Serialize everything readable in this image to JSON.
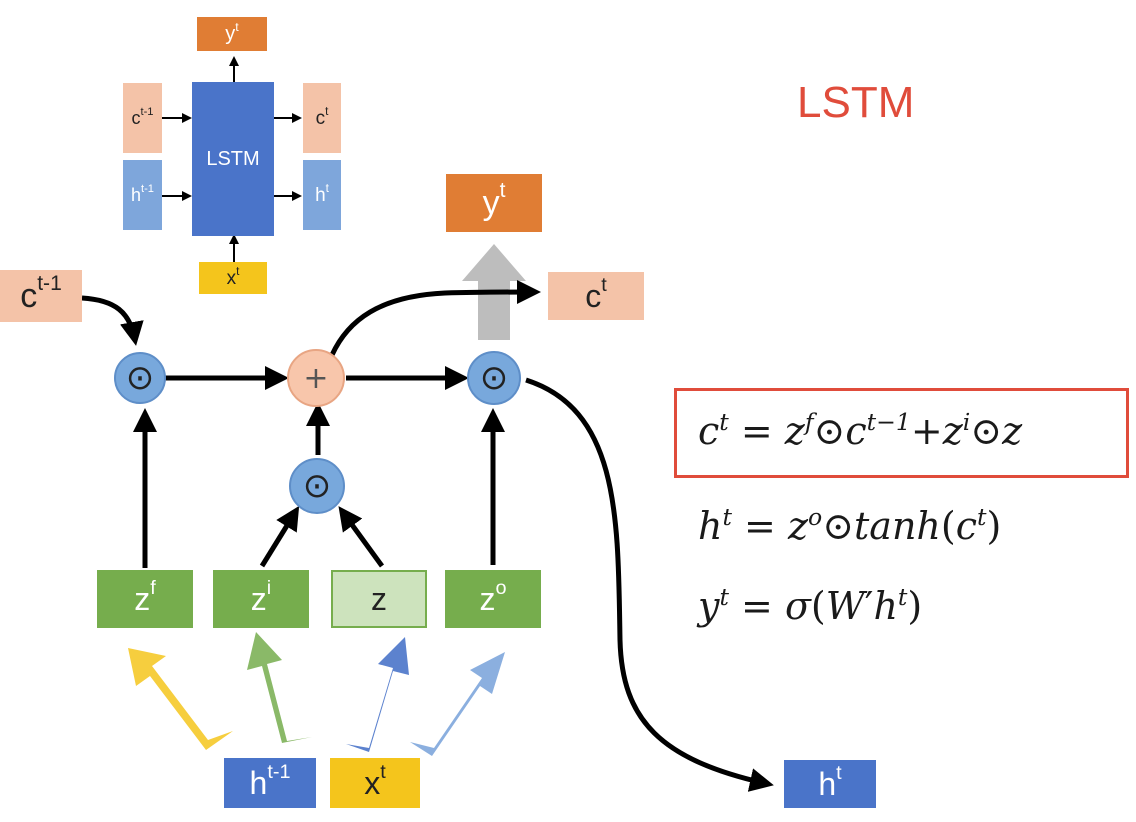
{
  "title": "LSTM",
  "mini": {
    "cell_label": "LSTM",
    "c_prev": {
      "base": "c",
      "sup": "t-1"
    },
    "h_prev": {
      "base": "h",
      "sup": "t-1"
    },
    "c_next": {
      "base": "c",
      "sup": "t"
    },
    "h_next": {
      "base": "h",
      "sup": "t"
    },
    "x": {
      "base": "x",
      "sup": "t"
    },
    "y": {
      "base": "y",
      "sup": "t"
    }
  },
  "main": {
    "c_prev": {
      "base": "c",
      "sup": "t-1"
    },
    "c_next": {
      "base": "c",
      "sup": "t"
    },
    "y_out": {
      "base": "y",
      "sup": "t"
    },
    "h_out": {
      "base": "h",
      "sup": "t"
    },
    "h_in": {
      "base": "h",
      "sup": "t-1"
    },
    "x_in": {
      "base": "x",
      "sup": "t"
    },
    "gates": {
      "zf": {
        "base": "z",
        "sup": "f"
      },
      "zi": {
        "base": "z",
        "sup": "i"
      },
      "z": {
        "base": "z",
        "sup": ""
      },
      "zo": {
        "base": "z",
        "sup": "o"
      }
    },
    "ops": {
      "mult": "⊙",
      "add": "+"
    }
  },
  "equations": [
    "c^t = z^f ⊙ c^{t−1} + z^i ⊙ z",
    "h^t = z^o ⊙ tanh(c^t)",
    "y^t = σ(W′h^t)"
  ],
  "colors": {
    "orange": "#e07d34",
    "peach": "#f4c3a8",
    "blue_cell": "#4a74c9",
    "blue_light": "#7ea6db",
    "yellow": "#f4c51c",
    "green": "#76ad4d",
    "green_light": "#cde3bd",
    "op_blue": "#78a8dc",
    "op_peach": "#f8c6ab",
    "red": "#e04c3b"
  }
}
